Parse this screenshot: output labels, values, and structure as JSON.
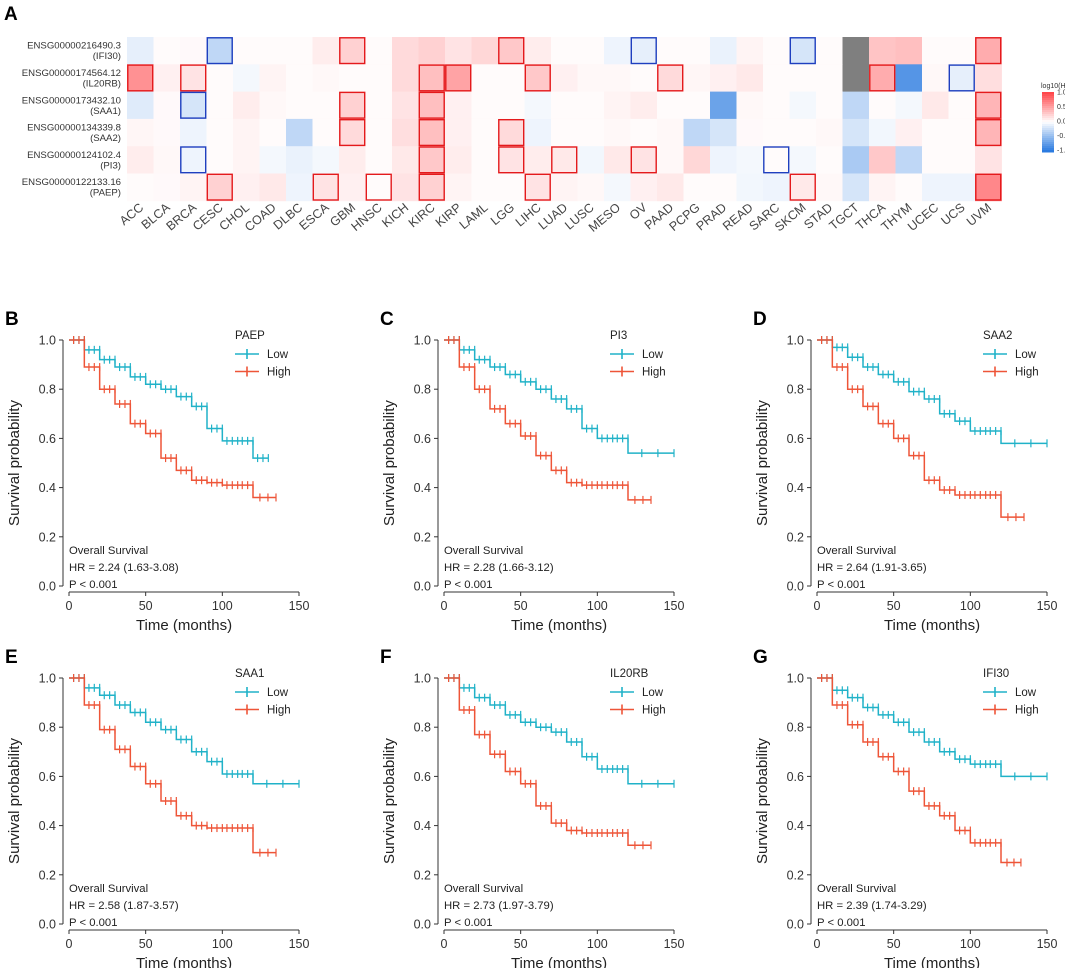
{
  "figure": {
    "panel_labels": [
      "A",
      "B",
      "C",
      "D",
      "E",
      "F",
      "G"
    ]
  },
  "chart_data": [
    {
      "type": "heatmap",
      "panel": "A",
      "title": "",
      "rows": [
        {
          "id": "ENSG00000216490.3",
          "gene": "(IFI30)"
        },
        {
          "id": "ENSG00000174564.12",
          "gene": "(IL20RB)"
        },
        {
          "id": "ENSG00000173432.10",
          "gene": "(SAA1)"
        },
        {
          "id": "ENSG00000134339.8",
          "gene": "(SAA2)"
        },
        {
          "id": "ENSG00000124102.4",
          "gene": "(PI3)"
        },
        {
          "id": "ENSG00000122133.16",
          "gene": "(PAEP)"
        }
      ],
      "columns": [
        "ACC",
        "BLCA",
        "BRCA",
        "CESC",
        "CHOL",
        "COAD",
        "DLBC",
        "ESCA",
        "GBM",
        "HNSC",
        "KICH",
        "KIRC",
        "KIRP",
        "LAML",
        "LGG",
        "LIHC",
        "LUAD",
        "LUSC",
        "MESO",
        "OV",
        "PAAD",
        "PCPG",
        "PRAD",
        "READ",
        "SARC",
        "SKCM",
        "STAD",
        "TGCT",
        "THCA",
        "THYM",
        "UCEC",
        "UCS",
        "UVM"
      ],
      "values": [
        [
          -0.12,
          0.02,
          0.03,
          -0.3,
          0.02,
          0.02,
          0.02,
          0.1,
          0.25,
          0.02,
          0.2,
          0.25,
          0.15,
          0.22,
          0.3,
          0.1,
          0.02,
          0.02,
          -0.08,
          -0.12,
          0.02,
          0.02,
          -0.1,
          0.06,
          0.02,
          -0.2,
          0.02,
          null,
          0.32,
          0.35,
          0.02,
          0.02,
          0.45
        ],
        [
          0.6,
          0.08,
          0.15,
          0.02,
          -0.05,
          0.06,
          0.02,
          0.04,
          0.02,
          0.02,
          0.2,
          0.35,
          0.5,
          0.02,
          0.02,
          0.3,
          0.08,
          0.04,
          0.04,
          0.02,
          0.2,
          0.05,
          0.08,
          0.12,
          0.02,
          0.02,
          0.02,
          null,
          0.45,
          -0.8,
          0.04,
          -0.12,
          0.18
        ],
        [
          -0.15,
          0.03,
          -0.2,
          0.02,
          0.1,
          0.04,
          0.02,
          0.02,
          0.25,
          0.02,
          0.15,
          0.35,
          0.08,
          0.02,
          0.02,
          -0.05,
          0.02,
          0.02,
          0.06,
          0.1,
          0.02,
          0.02,
          -0.7,
          0.04,
          0.02,
          -0.05,
          0.02,
          -0.3,
          0.02,
          -0.05,
          0.12,
          0.02,
          0.4
        ],
        [
          0.05,
          0.03,
          -0.08,
          0.02,
          0.06,
          0.02,
          -0.3,
          0.02,
          0.2,
          0.02,
          0.18,
          0.35,
          0.08,
          0.02,
          0.2,
          -0.08,
          0.02,
          0.02,
          0.04,
          0.02,
          0.04,
          -0.3,
          -0.2,
          0.03,
          0.02,
          0.02,
          0.04,
          -0.2,
          -0.06,
          0.08,
          0.02,
          0.02,
          0.4
        ],
        [
          0.1,
          0.04,
          -0.08,
          0.02,
          0.06,
          -0.05,
          -0.1,
          -0.05,
          0.1,
          0.02,
          0.12,
          0.3,
          0.1,
          0.02,
          0.15,
          0.1,
          0.12,
          -0.06,
          0.12,
          0.15,
          0.04,
          0.22,
          -0.08,
          -0.05,
          0.02,
          -0.05,
          0.02,
          -0.4,
          0.3,
          -0.3,
          0.02,
          0.02,
          0.15
        ],
        [
          0.02,
          0.03,
          0.06,
          0.25,
          0.08,
          0.12,
          -0.08,
          0.15,
          0.08,
          0.02,
          0.15,
          0.25,
          0.06,
          0.02,
          0.02,
          0.15,
          0.06,
          0.04,
          -0.05,
          0.08,
          0.12,
          0.02,
          0.02,
          -0.06,
          -0.08,
          0.12,
          0.04,
          -0.2,
          0.06,
          0.02,
          -0.08,
          -0.08,
          0.65
        ]
      ],
      "significant": [
        {
          "row": 0,
          "col": 3,
          "dir": "neg"
        },
        {
          "row": 0,
          "col": 8,
          "dir": "pos"
        },
        {
          "row": 0,
          "col": 14,
          "dir": "pos"
        },
        {
          "row": 0,
          "col": 19,
          "dir": "neg"
        },
        {
          "row": 0,
          "col": 25,
          "dir": "neg"
        },
        {
          "row": 0,
          "col": 32,
          "dir": "pos"
        },
        {
          "row": 1,
          "col": 0,
          "dir": "pos"
        },
        {
          "row": 1,
          "col": 2,
          "dir": "pos"
        },
        {
          "row": 1,
          "col": 11,
          "dir": "pos"
        },
        {
          "row": 1,
          "col": 12,
          "dir": "pos"
        },
        {
          "row": 1,
          "col": 15,
          "dir": "pos"
        },
        {
          "row": 1,
          "col": 20,
          "dir": "pos"
        },
        {
          "row": 1,
          "col": 28,
          "dir": "pos"
        },
        {
          "row": 1,
          "col": 31,
          "dir": "neg"
        },
        {
          "row": 2,
          "col": 2,
          "dir": "neg"
        },
        {
          "row": 2,
          "col": 8,
          "dir": "pos"
        },
        {
          "row": 2,
          "col": 11,
          "dir": "pos"
        },
        {
          "row": 2,
          "col": 32,
          "dir": "pos"
        },
        {
          "row": 3,
          "col": 8,
          "dir": "pos"
        },
        {
          "row": 3,
          "col": 11,
          "dir": "pos"
        },
        {
          "row": 3,
          "col": 14,
          "dir": "pos"
        },
        {
          "row": 3,
          "col": 32,
          "dir": "pos"
        },
        {
          "row": 4,
          "col": 2,
          "dir": "neg"
        },
        {
          "row": 4,
          "col": 11,
          "dir": "pos"
        },
        {
          "row": 4,
          "col": 14,
          "dir": "pos"
        },
        {
          "row": 4,
          "col": 16,
          "dir": "pos"
        },
        {
          "row": 4,
          "col": 19,
          "dir": "pos"
        },
        {
          "row": 4,
          "col": 24,
          "dir": "neg"
        },
        {
          "row": 5,
          "col": 3,
          "dir": "pos"
        },
        {
          "row": 5,
          "col": 7,
          "dir": "pos"
        },
        {
          "row": 5,
          "col": 9,
          "dir": "pos"
        },
        {
          "row": 5,
          "col": 11,
          "dir": "pos"
        },
        {
          "row": 5,
          "col": 15,
          "dir": "pos"
        },
        {
          "row": 5,
          "col": 25,
          "dir": "pos"
        },
        {
          "row": 5,
          "col": 32,
          "dir": "pos"
        }
      ],
      "legend": {
        "title": "log10(HR)",
        "ticks": [
          "1.0",
          "0.5",
          "0.0",
          "-0.5",
          "-1.0"
        ],
        "range": [
          -1.0,
          1.0
        ]
      },
      "colors": {
        "pos": "#e41a1c",
        "neg": "#1f3fbf",
        "na": "#7f7f7f",
        "low": "#2b7be0",
        "high": "#e8474b"
      }
    },
    {
      "type": "line",
      "subtype": "kaplan-meier",
      "panel": "B",
      "gene": "PAEP",
      "xlabel": "Time (months)",
      "ylabel": "Survival probability",
      "xlim": [
        0,
        150
      ],
      "ylim": [
        0,
        1
      ],
      "xticks": [
        0,
        50,
        100,
        150
      ],
      "yticks": [
        "0.0",
        "0.2",
        "0.4",
        "0.6",
        "0.8",
        "1.0"
      ],
      "stat_lines": [
        "Overall Survival",
        "HR = 2.24 (1.63-3.08)",
        "P < 0.001"
      ],
      "series": [
        {
          "name": "Low",
          "color": "#20b2c8",
          "x": [
            0,
            10,
            20,
            30,
            40,
            50,
            60,
            70,
            80,
            90,
            100,
            110,
            120,
            130
          ],
          "y": [
            1.0,
            0.96,
            0.92,
            0.89,
            0.85,
            0.82,
            0.8,
            0.77,
            0.73,
            0.64,
            0.59,
            0.59,
            0.52,
            0.52
          ]
        },
        {
          "name": "High",
          "color": "#ee5538",
          "x": [
            0,
            10,
            20,
            30,
            40,
            50,
            60,
            70,
            80,
            90,
            100,
            110,
            120,
            135
          ],
          "y": [
            1.0,
            0.89,
            0.8,
            0.74,
            0.66,
            0.62,
            0.52,
            0.47,
            0.43,
            0.42,
            0.41,
            0.41,
            0.36,
            0.36
          ]
        }
      ]
    },
    {
      "type": "line",
      "subtype": "kaplan-meier",
      "panel": "C",
      "gene": "PI3",
      "xlabel": "Time (months)",
      "ylabel": "Survival probability",
      "xlim": [
        0,
        150
      ],
      "ylim": [
        0,
        1
      ],
      "xticks": [
        0,
        50,
        100,
        150
      ],
      "yticks": [
        "0.0",
        "0.2",
        "0.4",
        "0.6",
        "0.8",
        "1.0"
      ],
      "stat_lines": [
        "Overall Survival",
        "HR = 2.28 (1.66-3.12)",
        "P < 0.001"
      ],
      "series": [
        {
          "name": "Low",
          "color": "#20b2c8",
          "x": [
            0,
            10,
            20,
            30,
            40,
            50,
            60,
            70,
            80,
            90,
            100,
            110,
            120,
            150
          ],
          "y": [
            1.0,
            0.96,
            0.92,
            0.89,
            0.86,
            0.83,
            0.8,
            0.76,
            0.72,
            0.64,
            0.6,
            0.6,
            0.54,
            0.54
          ]
        },
        {
          "name": "High",
          "color": "#ee5538",
          "x": [
            0,
            10,
            20,
            30,
            40,
            50,
            60,
            70,
            80,
            90,
            100,
            110,
            120,
            135
          ],
          "y": [
            1.0,
            0.89,
            0.8,
            0.72,
            0.66,
            0.61,
            0.53,
            0.47,
            0.42,
            0.41,
            0.41,
            0.41,
            0.35,
            0.35
          ]
        }
      ]
    },
    {
      "type": "line",
      "subtype": "kaplan-meier",
      "panel": "D",
      "gene": "SAA2",
      "xlabel": "Time (months)",
      "ylabel": "Survival probability",
      "xlim": [
        0,
        150
      ],
      "ylim": [
        0,
        1
      ],
      "xticks": [
        0,
        50,
        100,
        150
      ],
      "yticks": [
        "0.0",
        "0.2",
        "0.4",
        "0.6",
        "0.8",
        "1.0"
      ],
      "stat_lines": [
        "Overall Survival",
        "HR = 2.64 (1.91-3.65)",
        "P < 0.001"
      ],
      "series": [
        {
          "name": "Low",
          "color": "#20b2c8",
          "x": [
            0,
            10,
            20,
            30,
            40,
            50,
            60,
            70,
            80,
            90,
            100,
            110,
            120,
            150
          ],
          "y": [
            1.0,
            0.97,
            0.93,
            0.89,
            0.86,
            0.83,
            0.79,
            0.76,
            0.7,
            0.67,
            0.63,
            0.63,
            0.58,
            0.58
          ]
        },
        {
          "name": "High",
          "color": "#ee5538",
          "x": [
            0,
            10,
            20,
            30,
            40,
            50,
            60,
            70,
            80,
            90,
            100,
            110,
            120,
            135
          ],
          "y": [
            1.0,
            0.89,
            0.8,
            0.73,
            0.66,
            0.6,
            0.53,
            0.43,
            0.39,
            0.37,
            0.37,
            0.37,
            0.28,
            0.28
          ]
        }
      ]
    },
    {
      "type": "line",
      "subtype": "kaplan-meier",
      "panel": "E",
      "gene": "SAA1",
      "xlabel": "Time (months)",
      "ylabel": "Survival probability",
      "xlim": [
        0,
        150
      ],
      "ylim": [
        0,
        1
      ],
      "xticks": [
        0,
        50,
        100,
        150
      ],
      "yticks": [
        "0.0",
        "0.2",
        "0.4",
        "0.6",
        "0.8",
        "1.0"
      ],
      "stat_lines": [
        "Overall Survival",
        "HR = 2.58 (1.87-3.57)",
        "P < 0.001"
      ],
      "series": [
        {
          "name": "Low",
          "color": "#20b2c8",
          "x": [
            0,
            10,
            20,
            30,
            40,
            50,
            60,
            70,
            80,
            90,
            100,
            110,
            120,
            150
          ],
          "y": [
            1.0,
            0.96,
            0.93,
            0.89,
            0.86,
            0.82,
            0.79,
            0.75,
            0.7,
            0.66,
            0.61,
            0.61,
            0.57,
            0.57
          ]
        },
        {
          "name": "High",
          "color": "#ee5538",
          "x": [
            0,
            10,
            20,
            30,
            40,
            50,
            60,
            70,
            80,
            90,
            100,
            110,
            120,
            135
          ],
          "y": [
            1.0,
            0.89,
            0.79,
            0.71,
            0.64,
            0.57,
            0.5,
            0.44,
            0.4,
            0.39,
            0.39,
            0.39,
            0.29,
            0.29
          ]
        }
      ]
    },
    {
      "type": "line",
      "subtype": "kaplan-meier",
      "panel": "F",
      "gene": "IL20RB",
      "xlabel": "Time (months)",
      "ylabel": "Survival probability",
      "xlim": [
        0,
        150
      ],
      "ylim": [
        0,
        1
      ],
      "xticks": [
        0,
        50,
        100,
        150
      ],
      "yticks": [
        "0.0",
        "0.2",
        "0.4",
        "0.6",
        "0.8",
        "1.0"
      ],
      "stat_lines": [
        "Overall Survival",
        "HR = 2.73 (1.97-3.79)",
        "P < 0.001"
      ],
      "series": [
        {
          "name": "Low",
          "color": "#20b2c8",
          "x": [
            0,
            10,
            20,
            30,
            40,
            50,
            60,
            70,
            80,
            90,
            100,
            110,
            120,
            150
          ],
          "y": [
            1.0,
            0.96,
            0.92,
            0.89,
            0.85,
            0.82,
            0.8,
            0.78,
            0.74,
            0.68,
            0.63,
            0.63,
            0.57,
            0.57
          ]
        },
        {
          "name": "High",
          "color": "#ee5538",
          "x": [
            0,
            10,
            20,
            30,
            40,
            50,
            60,
            70,
            80,
            90,
            100,
            110,
            120,
            135
          ],
          "y": [
            1.0,
            0.87,
            0.77,
            0.69,
            0.62,
            0.57,
            0.48,
            0.41,
            0.38,
            0.37,
            0.37,
            0.37,
            0.32,
            0.32
          ]
        }
      ]
    },
    {
      "type": "line",
      "subtype": "kaplan-meier",
      "panel": "G",
      "gene": "IFI30",
      "xlabel": "Time (months)",
      "ylabel": "Survival probability",
      "xlim": [
        0,
        150
      ],
      "ylim": [
        0,
        1
      ],
      "xticks": [
        0,
        50,
        100,
        150
      ],
      "yticks": [
        "0.0",
        "0.2",
        "0.4",
        "0.6",
        "0.8",
        "1.0"
      ],
      "stat_lines": [
        "Overall Survival",
        "HR = 2.39 (1.74-3.29)",
        "P < 0.001"
      ],
      "series": [
        {
          "name": "Low",
          "color": "#20b2c8",
          "x": [
            0,
            10,
            20,
            30,
            40,
            50,
            60,
            70,
            80,
            90,
            100,
            110,
            120,
            150
          ],
          "y": [
            1.0,
            0.95,
            0.92,
            0.88,
            0.85,
            0.82,
            0.78,
            0.74,
            0.7,
            0.67,
            0.65,
            0.65,
            0.6,
            0.6
          ]
        },
        {
          "name": "High",
          "color": "#ee5538",
          "x": [
            0,
            10,
            20,
            30,
            40,
            50,
            60,
            70,
            80,
            90,
            100,
            110,
            120,
            133
          ],
          "y": [
            1.0,
            0.89,
            0.81,
            0.74,
            0.68,
            0.62,
            0.54,
            0.48,
            0.44,
            0.38,
            0.33,
            0.33,
            0.25,
            0.25
          ]
        }
      ]
    }
  ]
}
